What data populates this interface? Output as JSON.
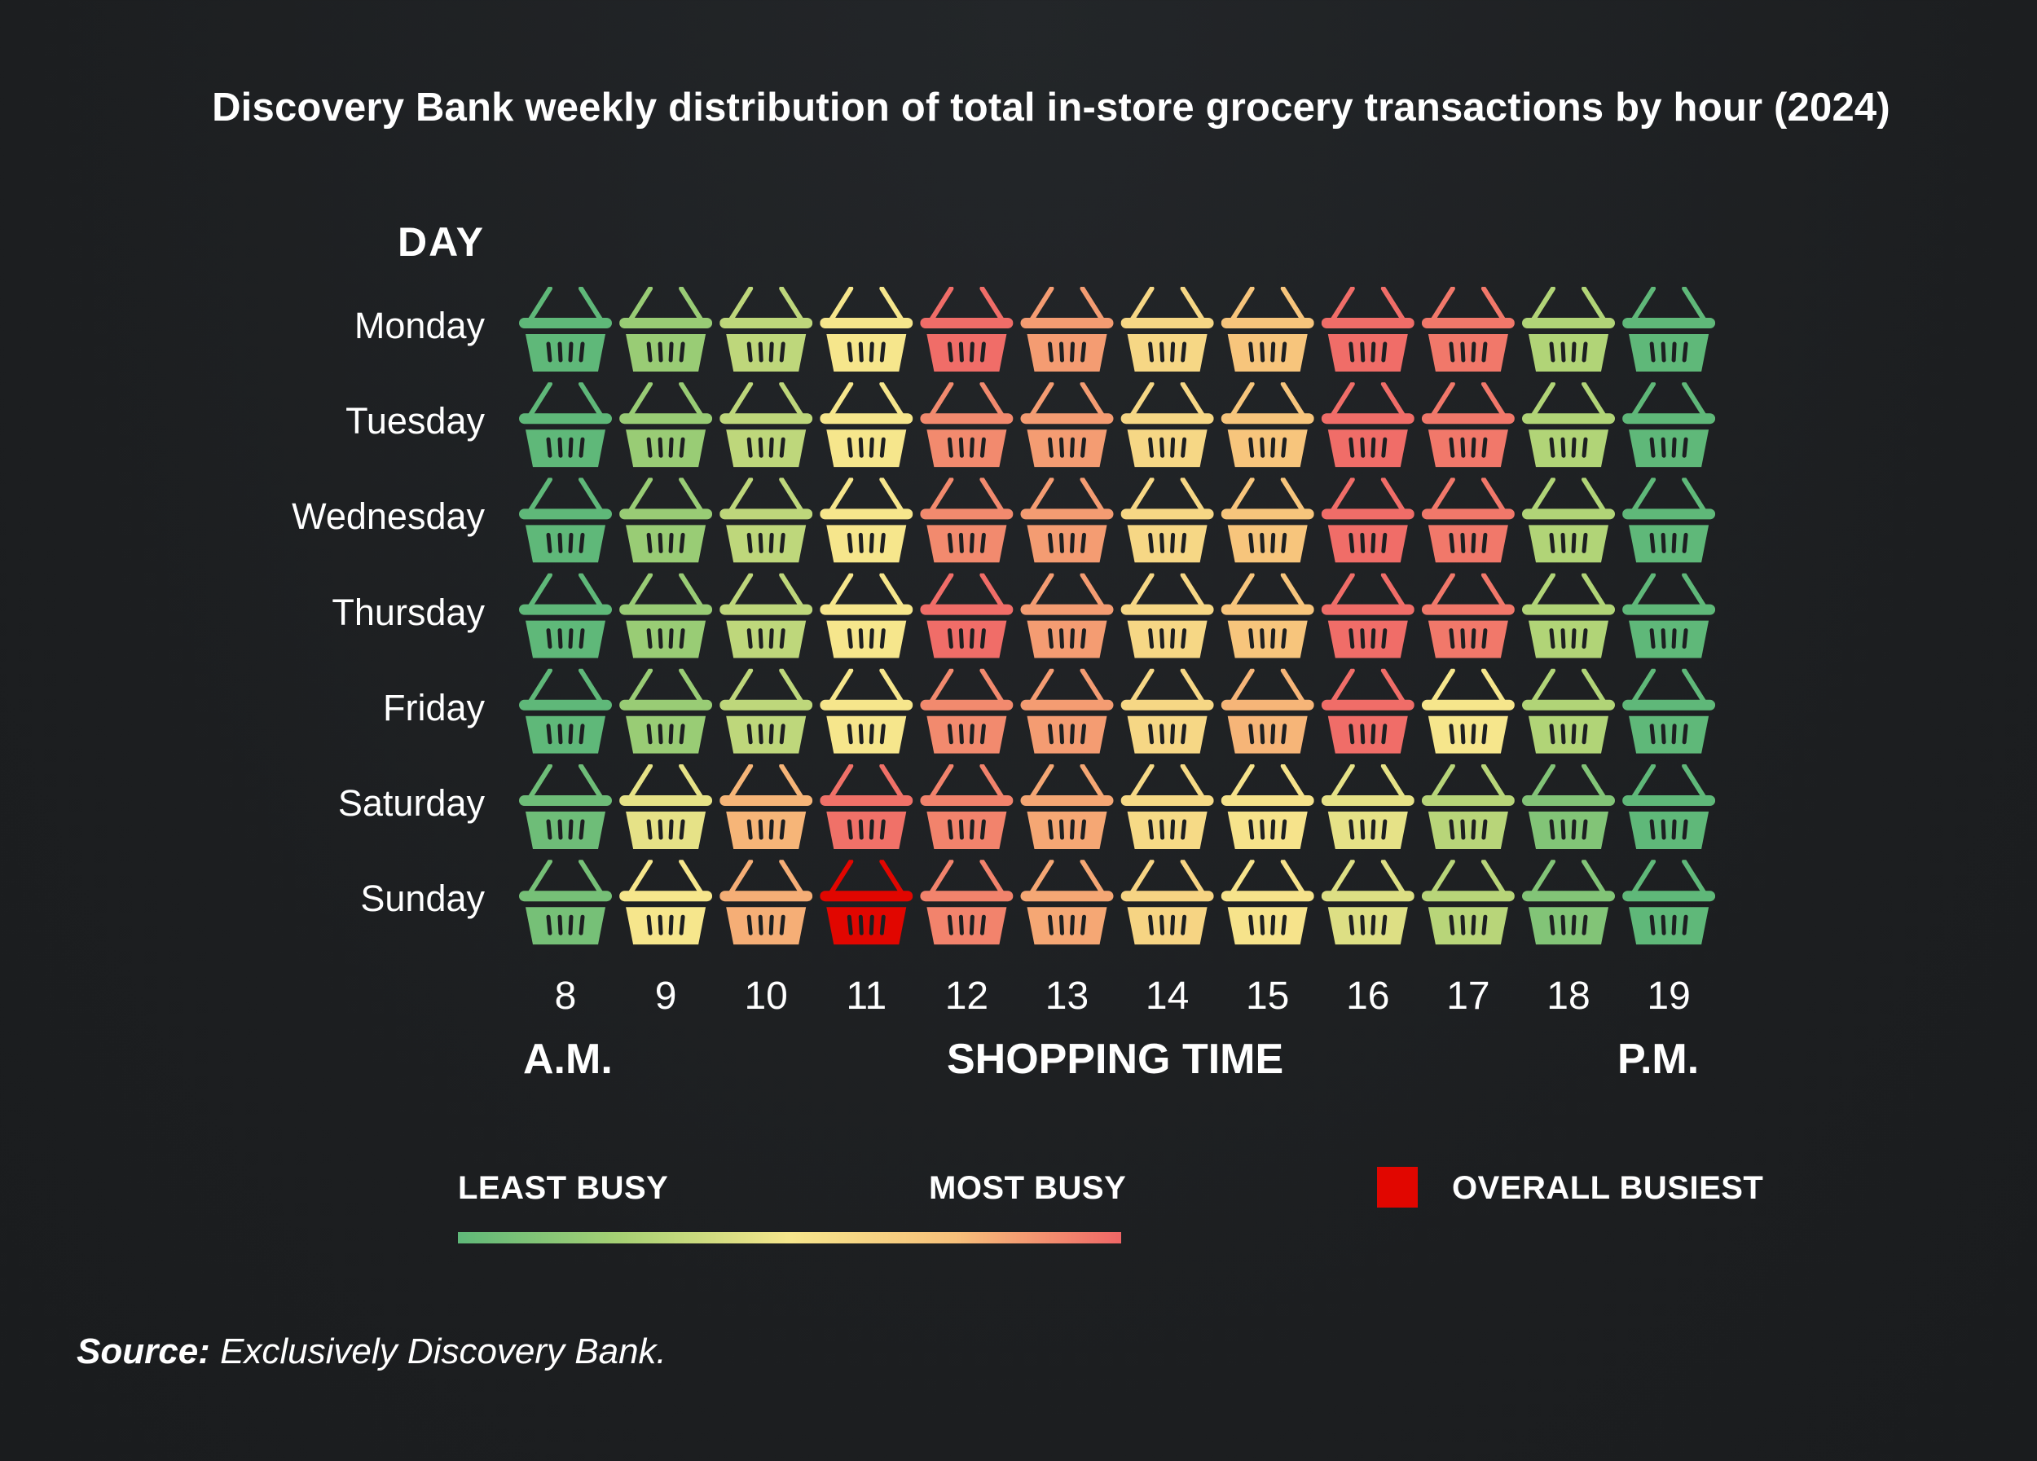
{
  "chart_data": {
    "type": "heatmap",
    "title": "Discovery Bank weekly distribution of total in-store grocery transactions by hour (2024)",
    "y_heading": "DAY",
    "rows": [
      "Monday",
      "Tuesday",
      "Wednesday",
      "Thursday",
      "Friday",
      "Saturday",
      "Sunday"
    ],
    "columns": [
      "8",
      "9",
      "10",
      "11",
      "12",
      "13",
      "14",
      "15",
      "16",
      "17",
      "18",
      "19"
    ],
    "x_heading": "SHOPPING TIME",
    "x_left_label": "A.M.",
    "x_right_label": "P.M.",
    "value_scale": "0 = least busy, 1 = most busy",
    "values": [
      [
        0.0,
        0.2,
        0.32,
        0.5,
        0.98,
        0.85,
        0.6,
        0.72,
        0.98,
        0.95,
        0.28,
        0.0
      ],
      [
        0.0,
        0.2,
        0.32,
        0.5,
        0.9,
        0.85,
        0.6,
        0.72,
        0.98,
        0.95,
        0.28,
        0.0
      ],
      [
        0.0,
        0.2,
        0.32,
        0.5,
        0.9,
        0.85,
        0.6,
        0.72,
        0.98,
        0.95,
        0.28,
        0.0
      ],
      [
        0.0,
        0.2,
        0.32,
        0.5,
        0.98,
        0.85,
        0.6,
        0.72,
        0.98,
        0.95,
        0.28,
        0.0
      ],
      [
        0.0,
        0.2,
        0.32,
        0.5,
        0.9,
        0.85,
        0.6,
        0.78,
        0.98,
        0.5,
        0.28,
        0.0
      ],
      [
        0.05,
        0.45,
        0.78,
        0.97,
        0.92,
        0.82,
        0.58,
        0.52,
        0.45,
        0.3,
        0.12,
        0.0
      ],
      [
        0.08,
        0.5,
        0.8,
        1.0,
        0.92,
        0.82,
        0.62,
        0.52,
        0.42,
        0.3,
        0.12,
        0.0
      ]
    ],
    "overall_busiest": {
      "row": "Sunday",
      "column": "11"
    },
    "legend": {
      "least_label": "LEAST BUSY",
      "most_label": "MOST BUSY",
      "busiest_label": "OVERALL BUSIEST",
      "gradient_colors": [
        "#5fb879",
        "#a8d174",
        "#f6e68c",
        "#f7c07a",
        "#ef6666"
      ],
      "busiest_color": "#e10600"
    }
  },
  "source": {
    "prefix": "Source:",
    "text": "Exclusively Discovery Bank."
  }
}
